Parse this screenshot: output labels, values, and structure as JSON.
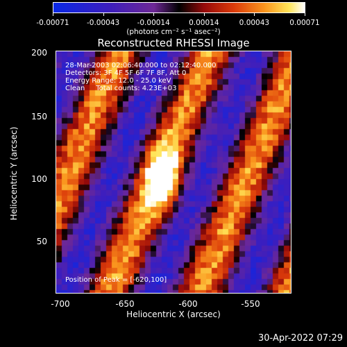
{
  "colorbar": {
    "tick_labels": [
      "-0.00071",
      "-0.00043",
      "-0.00014",
      "0.00014",
      "0.00043",
      "0.00071"
    ],
    "units": "(photons cm⁻² s⁻¹ asec⁻²)"
  },
  "title": "Reconstructed RHESSI Image",
  "info": {
    "time": "28-Mar-2003 02:06:40.000 to 02:12:40.000",
    "detectors": "Detectors: 3F 4F 5F 6F 7F 8F, Att 0",
    "energy": "Energy Range: 12.0 - 25.0 keV",
    "clean": "Clean     Total counts: 4.23E+03",
    "peak": "Position of Peak = [-620,100]"
  },
  "axes": {
    "xlabel": "Heliocentric X (arcsec)",
    "ylabel": "Heliocentric Y (arcsec)",
    "xticks": [
      "-700",
      "-650",
      "-600",
      "-550"
    ],
    "yticks": [
      "200",
      "150",
      "100",
      "50"
    ],
    "xlim": [
      -717,
      -520
    ],
    "ylim": [
      5,
      202
    ]
  },
  "timestamp": "30-Apr-2022 07:29"
}
